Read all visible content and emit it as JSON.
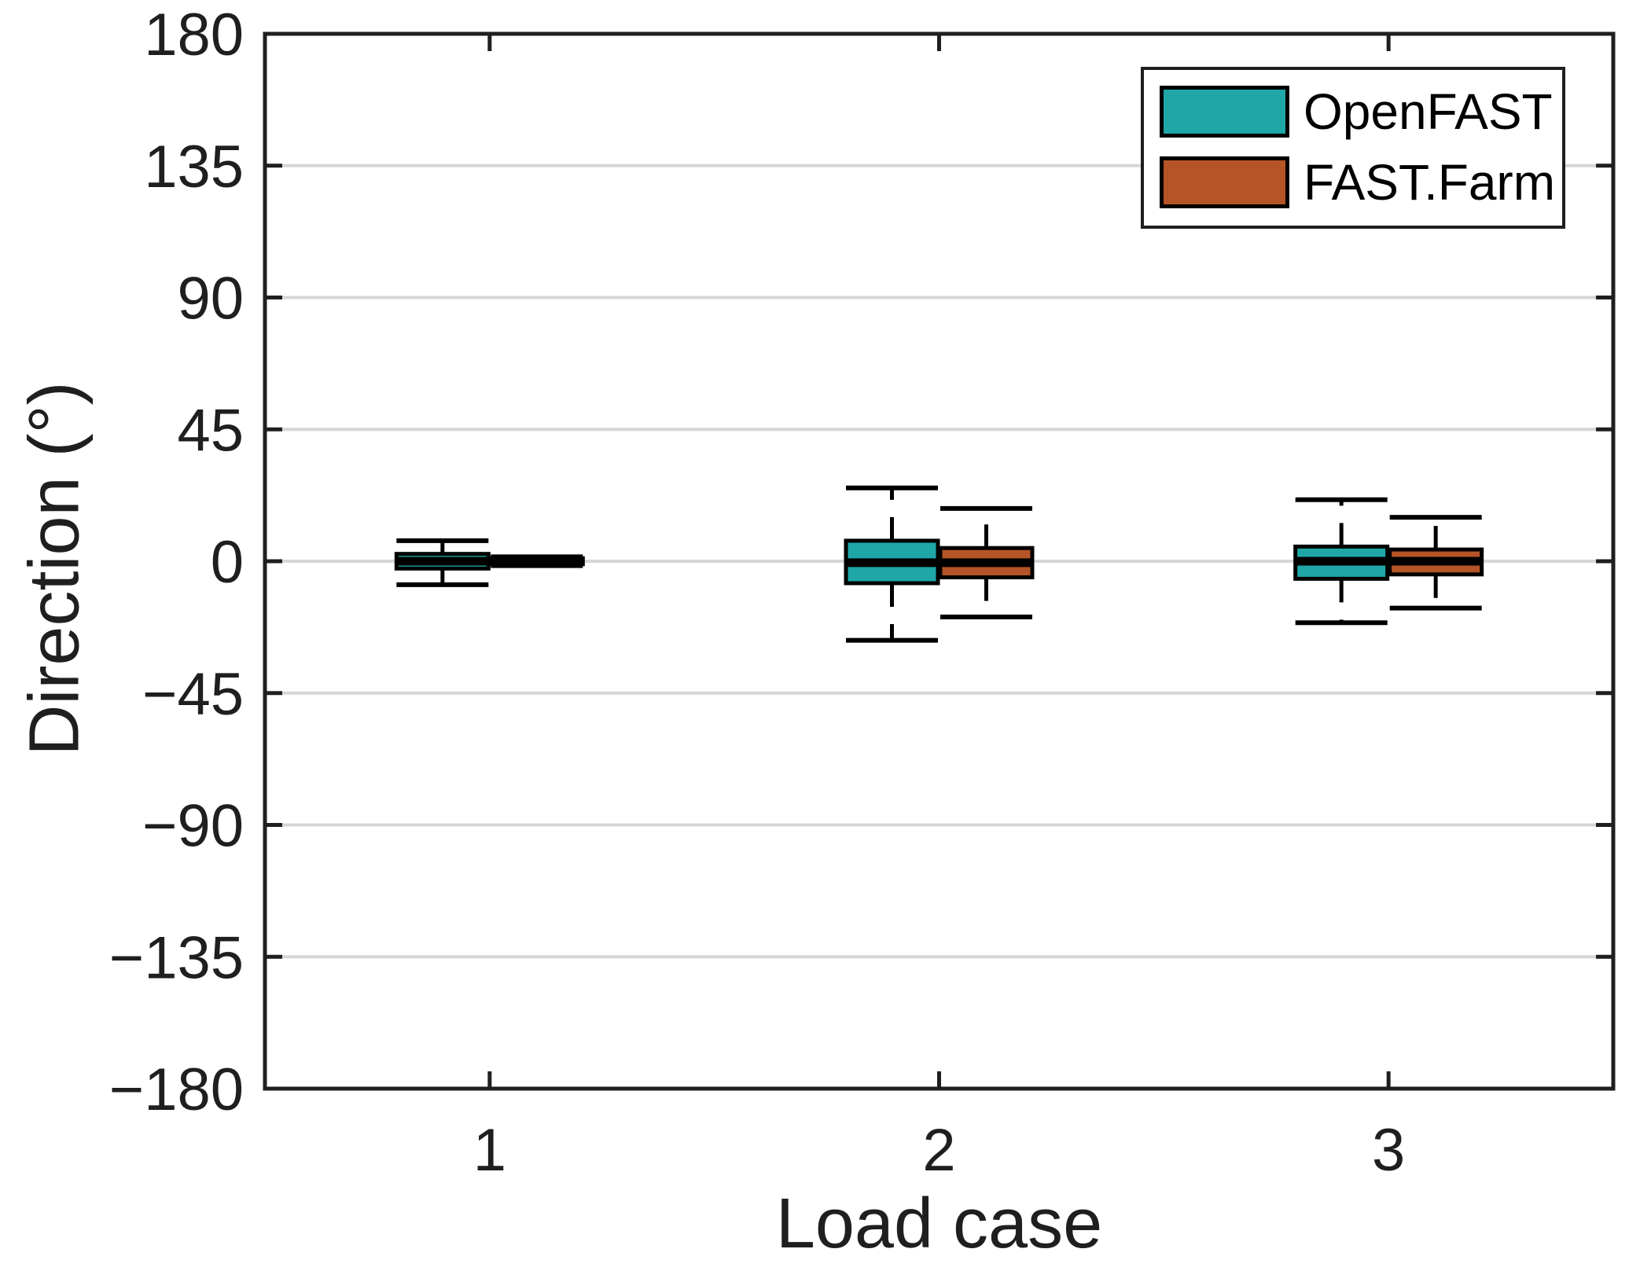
{
  "figure": {
    "background_color": "#ffffff"
  },
  "chart_data": {
    "type": "boxplot",
    "title": "",
    "xlabel": "Load case",
    "ylabel": "Direction (°)",
    "categories": [
      "1",
      "2",
      "3"
    ],
    "y_axis": {
      "min": -180,
      "max": 180,
      "tick_step": 45,
      "ticks": [
        180,
        135,
        90,
        45,
        0,
        -45,
        -90,
        -135,
        -180
      ]
    },
    "grid": "horizontal",
    "legend": {
      "position": "top-right",
      "entries": [
        "OpenFAST",
        "FAST.Farm"
      ]
    },
    "series": [
      {
        "name": "OpenFAST",
        "color": "#1fa7a7",
        "boxes": [
          {
            "category": "1",
            "whisker_low": -8,
            "q1": -2.5,
            "median": 0,
            "q3": 2.5,
            "whisker_high": 7
          },
          {
            "category": "2",
            "whisker_low": -27,
            "q1": -7.5,
            "median": -0.5,
            "q3": 7,
            "whisker_high": 25
          },
          {
            "category": "3",
            "whisker_low": -21,
            "q1": -6,
            "median": 0,
            "q3": 5,
            "whisker_high": 21
          }
        ]
      },
      {
        "name": "FAST.Farm",
        "color": "#b55426",
        "boxes": [
          {
            "category": "1",
            "whisker_low": -1.5,
            "q1": -1,
            "median": 0,
            "q3": 1,
            "whisker_high": 1.5
          },
          {
            "category": "2",
            "whisker_low": -19,
            "q1": -5.5,
            "median": -0.5,
            "q3": 4.5,
            "whisker_high": 18
          },
          {
            "category": "3",
            "whisker_low": -16,
            "q1": -4.5,
            "median": 0,
            "q3": 4,
            "whisker_high": 15
          }
        ]
      }
    ],
    "style": {
      "grid_color": "#d6d6d6",
      "axis_color": "#1f1f1f",
      "text_color": "#1f1f1f",
      "box_edge_color": "#000000",
      "median_color": "#000000",
      "whisker_color": "#000000"
    }
  }
}
